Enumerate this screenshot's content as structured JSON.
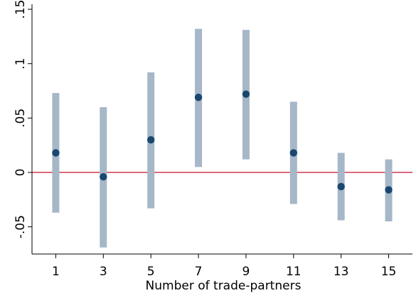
{
  "chart_data": {
    "type": "scatter",
    "title": "",
    "xlabel": "Number of trade-partners",
    "ylabel": "",
    "x": [
      1,
      3,
      5,
      7,
      9,
      11,
      13,
      15
    ],
    "x_tick_values": [
      1,
      3,
      5,
      7,
      9,
      11,
      13,
      15
    ],
    "x_tick_labels": [
      "1",
      "3",
      "5",
      "7",
      "9",
      "11",
      "13",
      "15"
    ],
    "xlim": [
      0,
      16
    ],
    "y_tick_values": [
      -0.05,
      0,
      0.05,
      0.1,
      0.15
    ],
    "y_tick_labels": [
      "-.05",
      "0",
      ".05",
      ".1",
      ".15"
    ],
    "ylim": [
      -0.075,
      0.152
    ],
    "series": [
      {
        "type": "point_estimate_with_confidence_interval",
        "estimate": [
          0.018,
          -0.004,
          0.03,
          0.069,
          0.072,
          0.018,
          -0.013,
          -0.016
        ],
        "ci_low": [
          -0.037,
          -0.069,
          -0.033,
          0.005,
          0.012,
          -0.029,
          -0.044,
          -0.045
        ],
        "ci_high": [
          0.073,
          0.06,
          0.092,
          0.132,
          0.131,
          0.065,
          0.018,
          0.012
        ]
      }
    ],
    "reference_line": {
      "y": 0
    },
    "grid": false,
    "legend": "none",
    "colors": {
      "point": "#1a476f",
      "interval": "#a6b7c8",
      "reference_line": "#c8102e",
      "axis": "#000000"
    }
  }
}
